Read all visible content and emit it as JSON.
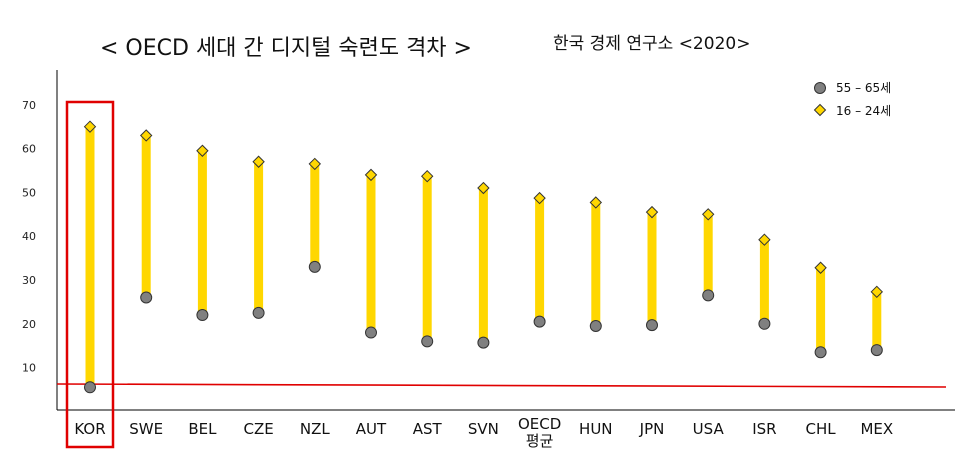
{
  "chart_data": {
    "type": "scatter",
    "title": "< OECD 세대 간 디지털 숙련도 격차 >",
    "subtitle": "한국 경제 연구소 <2020>",
    "categories": [
      "KOR",
      "SWE",
      "BEL",
      "CZE",
      "NZL",
      "AUT",
      "AST",
      "SVN",
      "OECD|평균",
      "HUN",
      "JPN",
      "USA",
      "ISR",
      "CHL",
      "MEX"
    ],
    "series": [
      {
        "name": "55 – 65세",
        "marker": "circle",
        "color": "#808080",
        "values": [
          5.5,
          26,
          22,
          22.5,
          33,
          18,
          16,
          15.7,
          20.5,
          19.5,
          19.7,
          26.5,
          20,
          13.5,
          14
        ]
      },
      {
        "name": "16 – 24세",
        "marker": "diamond",
        "color": "#FFD700",
        "values": [
          65,
          63,
          59.5,
          57,
          56.5,
          54,
          53.7,
          51,
          48.7,
          47.7,
          45.5,
          45,
          39.2,
          32.8,
          27.3
        ]
      }
    ],
    "yticks": [
      10,
      20,
      30,
      40,
      50,
      60,
      70
    ],
    "ylim": [
      0,
      80
    ],
    "bar_color": "#FFD700",
    "reference_line_color": "#E00000",
    "highlight_category": "KOR",
    "highlight_color": "#E00000",
    "legend_position": "top-right",
    "grid": false
  }
}
